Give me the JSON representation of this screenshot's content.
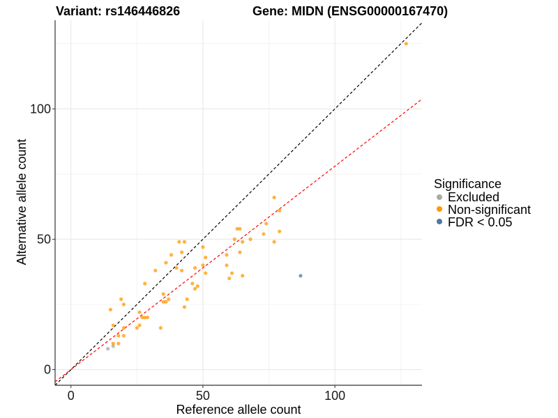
{
  "chart_data": {
    "type": "scatter",
    "title_left": "Variant: rs146446826",
    "title_right": "Gene: MIDN (ENSG00000167470)",
    "xlabel": "Reference allele count",
    "ylabel": "Alternative allele count",
    "xlim": [
      -6,
      133
    ],
    "ylim": [
      -6,
      134
    ],
    "x_ticks": [
      0,
      50,
      100
    ],
    "y_ticks": [
      0,
      50,
      100
    ],
    "grid": true,
    "legend": {
      "title": "Significance",
      "position": "right",
      "entries": [
        {
          "label": "Excluded",
          "color": "#A9A9A9"
        },
        {
          "label": "Non-significant",
          "color": "#FF9900"
        },
        {
          "label": "FDR < 0.05",
          "color": "#4F76A6"
        }
      ]
    },
    "reference_lines": [
      {
        "name": "identity",
        "slope": 1.0,
        "intercept": 0,
        "color": "#000000"
      },
      {
        "name": "fit",
        "slope": 0.78,
        "intercept": 0,
        "color": "#FF0000"
      }
    ],
    "series": [
      {
        "name": "Excluded",
        "color": "#A9A9A9",
        "points": [
          [
            14,
            8
          ],
          [
            16,
            9
          ]
        ]
      },
      {
        "name": "Non-significant",
        "color": "#FF9900",
        "points": [
          [
            15,
            23
          ],
          [
            16,
            17
          ],
          [
            16,
            10
          ],
          [
            18,
            13
          ],
          [
            18,
            10
          ],
          [
            19,
            27
          ],
          [
            20,
            13
          ],
          [
            20,
            16
          ],
          [
            20,
            25
          ],
          [
            25,
            16
          ],
          [
            26,
            17
          ],
          [
            26,
            22
          ],
          [
            27,
            20
          ],
          [
            28,
            20
          ],
          [
            28,
            33
          ],
          [
            29,
            20
          ],
          [
            32,
            38
          ],
          [
            34,
            16
          ],
          [
            35,
            26
          ],
          [
            35,
            29
          ],
          [
            36,
            41
          ],
          [
            36,
            26
          ],
          [
            37,
            27
          ],
          [
            38,
            44
          ],
          [
            40,
            39
          ],
          [
            41,
            49
          ],
          [
            42,
            45
          ],
          [
            42,
            38
          ],
          [
            43,
            24
          ],
          [
            43,
            49
          ],
          [
            44,
            27
          ],
          [
            46,
            33
          ],
          [
            47,
            31
          ],
          [
            47,
            39
          ],
          [
            48,
            32
          ],
          [
            50,
            47
          ],
          [
            50,
            40
          ],
          [
            51,
            43
          ],
          [
            51,
            37
          ],
          [
            59,
            44
          ],
          [
            59,
            40
          ],
          [
            60,
            35
          ],
          [
            61,
            37
          ],
          [
            62,
            50
          ],
          [
            63,
            54
          ],
          [
            64,
            54
          ],
          [
            64,
            45
          ],
          [
            65,
            36
          ],
          [
            65,
            49
          ],
          [
            68,
            50
          ],
          [
            73,
            52
          ],
          [
            74,
            56
          ],
          [
            77,
            66
          ],
          [
            77,
            49
          ],
          [
            79,
            53
          ],
          [
            79,
            61
          ],
          [
            127,
            125
          ]
        ]
      },
      {
        "name": "FDR < 0.05",
        "color": "#4F76A6",
        "points": [
          [
            87,
            36
          ]
        ]
      }
    ]
  }
}
